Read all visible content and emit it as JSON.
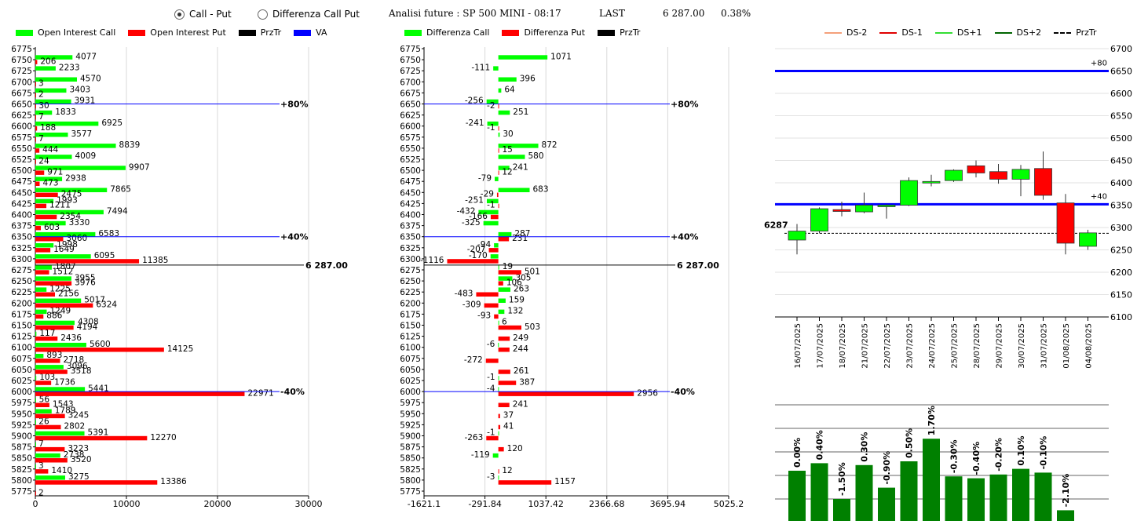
{
  "header": {
    "mode_options": [
      {
        "label": "Call - Put",
        "selected": true
      },
      {
        "label": "Differenza Call Put",
        "selected": false
      }
    ],
    "title": "Analisi future : SP 500 MINI - 08:17",
    "last_label": "LAST",
    "last_value": "6 287.00",
    "change_pct": "0.38%"
  },
  "colors": {
    "call": "#00ff00",
    "put": "#ff0000",
    "przt": "#000000",
    "va": "#0000ff",
    "dark_green": "#008000"
  },
  "legend_left": [
    {
      "label": "Open Interest Call",
      "color": "#00ff00"
    },
    {
      "label": "Open Interest Put",
      "color": "#ff0000"
    },
    {
      "label": "PrzTr",
      "color": "#000000"
    },
    {
      "label": "VA",
      "color": "#0000ff"
    }
  ],
  "legend_mid": [
    {
      "label": "Differenza Call",
      "color": "#00ff00"
    },
    {
      "label": "Differenza Put",
      "color": "#ff0000"
    },
    {
      "label": "PrzTr",
      "color": "#000000"
    }
  ],
  "legend_right": [
    {
      "label": "DS-2",
      "color": "#f4a07a",
      "dash": false
    },
    {
      "label": "DS-1",
      "color": "#e00000",
      "dash": false
    },
    {
      "label": "DS+1",
      "color": "#33dd33",
      "dash": false
    },
    {
      "label": "DS+2",
      "color": "#006400",
      "dash": false
    },
    {
      "label": "PrzTr",
      "color": "#000000",
      "dash": true
    }
  ],
  "chart_data": [
    {
      "type": "bar",
      "orientation": "horizontal",
      "strikes": [
        6775,
        6750,
        6725,
        6700,
        6675,
        6650,
        6625,
        6600,
        6575,
        6550,
        6525,
        6500,
        6475,
        6450,
        6425,
        6400,
        6375,
        6350,
        6325,
        6300,
        6275,
        6250,
        6225,
        6200,
        6175,
        6150,
        6125,
        6100,
        6075,
        6050,
        6025,
        6000,
        5975,
        5950,
        5925,
        5900,
        5875,
        5850,
        5825,
        5800,
        5775
      ],
      "series": [
        {
          "name": "Open Interest Call",
          "values": [
            null,
            4077,
            2233,
            4570,
            3403,
            3931,
            1833,
            6925,
            3577,
            8839,
            4009,
            9907,
            2938,
            7865,
            1993,
            7494,
            3330,
            6583,
            1998,
            6095,
            1807,
            3955,
            1225,
            5017,
            1249,
            4308,
            117,
            5600,
            893,
            3096,
            103,
            5441,
            56,
            1789,
            26,
            5391,
            7,
            2738,
            3,
            3275,
            null
          ]
        },
        {
          "name": "Open Interest Put",
          "values": [
            null,
            206,
            null,
            3,
            2,
            30,
            7,
            188,
            7,
            444,
            24,
            971,
            473,
            2475,
            1211,
            2354,
            603,
            3060,
            1649,
            11385,
            1512,
            3976,
            2156,
            6324,
            886,
            4194,
            2436,
            14125,
            2718,
            3518,
            1736,
            22971,
            1543,
            3245,
            2802,
            12270,
            3223,
            3520,
            1410,
            13386,
            2
          ]
        }
      ],
      "annotations": [
        {
          "strike": 6650,
          "label": "+80%"
        },
        {
          "strike": 6350,
          "label": "+40%"
        },
        {
          "strike": 6300,
          "label": "6 287.00"
        },
        {
          "strike": 6000,
          "label": "-40%"
        }
      ],
      "x_ticks": [
        "0",
        "10000",
        "20000",
        "30000"
      ],
      "xlim": [
        0,
        30000
      ]
    },
    {
      "type": "bar",
      "orientation": "horizontal",
      "strikes": [
        6775,
        6750,
        6725,
        6700,
        6675,
        6650,
        6625,
        6600,
        6575,
        6550,
        6525,
        6500,
        6475,
        6450,
        6425,
        6400,
        6375,
        6350,
        6325,
        6300,
        6275,
        6250,
        6225,
        6200,
        6175,
        6150,
        6125,
        6100,
        6075,
        6050,
        6025,
        6000,
        5975,
        5950,
        5925,
        5900,
        5875,
        5850,
        5825,
        5800,
        5775
      ],
      "series": [
        {
          "name": "Differenza Call",
          "values": [
            null,
            1071,
            -111,
            396,
            64,
            -256,
            251,
            -241,
            30,
            872,
            580,
            241,
            -79,
            683,
            -251,
            -432,
            -325,
            287,
            -94,
            -170,
            19,
            305,
            263,
            159,
            132,
            6,
            null,
            -6,
            null,
            null,
            -1,
            -4,
            null,
            null,
            null,
            -1,
            null,
            -119,
            null,
            -3,
            null
          ]
        },
        {
          "name": "Differenza Put",
          "values": [
            null,
            null,
            null,
            null,
            null,
            -2,
            null,
            -1,
            null,
            15,
            null,
            12,
            null,
            -29,
            -1,
            -166,
            null,
            231,
            -207,
            -1116,
            501,
            106,
            -483,
            -309,
            -93,
            503,
            249,
            244,
            -272,
            261,
            387,
            2956,
            241,
            37,
            41,
            -263,
            120,
            null,
            12,
            1157,
            null
          ]
        }
      ],
      "annotations": [
        {
          "strike": 6650,
          "label": "+80%"
        },
        {
          "strike": 6350,
          "label": "+40%"
        },
        {
          "strike": 6300,
          "label": "6 287.00"
        },
        {
          "strike": 6000,
          "label": "-40%"
        }
      ],
      "x_ticks": [
        "-1621.1",
        "-291.84",
        "1037.42",
        "2366.68",
        "3695.94",
        "5025.2"
      ],
      "xlim": [
        -1621.1,
        5025.2
      ]
    },
    {
      "type": "candlestick",
      "dates": [
        "16/07/2025",
        "17/07/2025",
        "18/07/2025",
        "21/07/2025",
        "22/07/2025",
        "23/07/2025",
        "24/07/2025",
        "25/07/2025",
        "28/07/2025",
        "29/07/2025",
        "30/07/2025",
        "31/07/2025",
        "01/08/2025",
        "04/08/2025"
      ],
      "ohlc": [
        [
          6272,
          6308,
          6240,
          6292
        ],
        [
          6292,
          6345,
          6287,
          6342
        ],
        [
          6340,
          6358,
          6325,
          6336
        ],
        [
          6335,
          6378,
          6332,
          6350
        ],
        [
          6350,
          6352,
          6320,
          6348
        ],
        [
          6350,
          6412,
          6348,
          6405
        ],
        [
          6402,
          6418,
          6392,
          6403
        ],
        [
          6405,
          6430,
          6402,
          6428
        ],
        [
          6438,
          6450,
          6412,
          6422
        ],
        [
          6425,
          6442,
          6398,
          6408
        ],
        [
          6408,
          6440,
          6370,
          6430
        ],
        [
          6432,
          6470,
          6362,
          6372
        ],
        [
          6355,
          6375,
          6240,
          6265
        ],
        [
          6258,
          6295,
          6250,
          6288
        ]
      ],
      "candle_colors": [
        "green",
        "green",
        "red",
        "green",
        "green",
        "green",
        "green",
        "green",
        "red",
        "red",
        "green",
        "red",
        "red",
        "green"
      ],
      "y_ticks": [
        6700,
        6650,
        6600,
        6550,
        6500,
        6450,
        6400,
        6350,
        6300,
        6250,
        6200,
        6150,
        6100
      ],
      "ylim": [
        6100,
        6700
      ],
      "levels": [
        {
          "value": 6650,
          "label": "+80"
        },
        {
          "value": 6352,
          "label": "+40"
        }
      ],
      "przt": 6287,
      "przt_label": "6287"
    },
    {
      "type": "bar",
      "categories": [
        "16/07/2025",
        "17/07/2025",
        "18/07/2025",
        "21/07/2025",
        "22/07/2025",
        "23/07/2025",
        "24/07/2025",
        "25/07/2025",
        "28/07/2025",
        "29/07/2025",
        "30/07/2025",
        "31/07/2025",
        "01/08/2025",
        "04/08/2025"
      ],
      "labels": [
        "0.00%",
        "0.40%",
        "-1.50%",
        "0.30%",
        "-0.90%",
        "0.50%",
        "1.70%",
        "-0.30%",
        "-0.40%",
        "-0.20%",
        "0.10%",
        "-0.10%",
        "-2.10%",
        ""
      ]
    }
  ]
}
